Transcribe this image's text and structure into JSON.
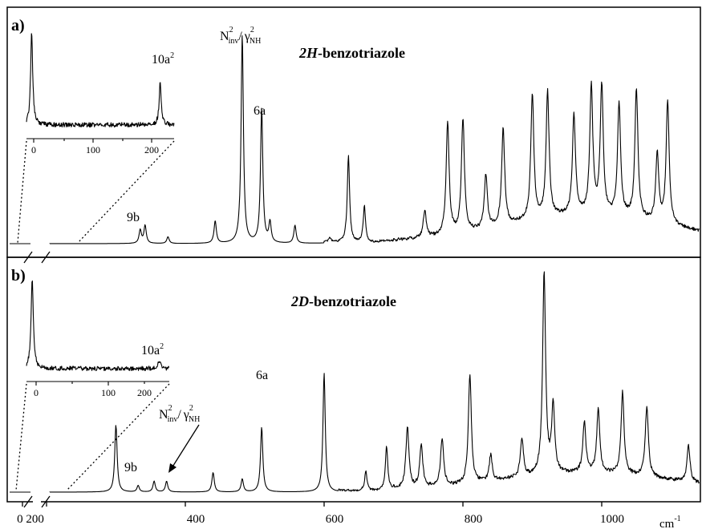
{
  "chart_data": [
    {
      "type": "line",
      "panel_label": "a)",
      "title": "2H-benzotriazole",
      "xunit": "cm-1",
      "xlim": [
        0,
        1150
      ],
      "x_axis_break_between": [
        30,
        200
      ],
      "annotations": [
        {
          "text": "9b",
          "x": 340
        },
        {
          "text": "6a",
          "x": 510
        },
        {
          "text": "Ninv2/γNH2",
          "x": 482
        }
      ],
      "peaks": [
        {
          "x": 335,
          "y": 0.06
        },
        {
          "x": 342,
          "y": 0.08
        },
        {
          "x": 375,
          "y": 0.03
        },
        {
          "x": 443,
          "y": 0.1
        },
        {
          "x": 482,
          "y": 0.93
        },
        {
          "x": 510,
          "y": 0.6
        },
        {
          "x": 522,
          "y": 0.09
        },
        {
          "x": 558,
          "y": 0.08
        },
        {
          "x": 608,
          "y": 0.02
        },
        {
          "x": 635,
          "y": 0.39
        },
        {
          "x": 658,
          "y": 0.16
        },
        {
          "x": 745,
          "y": 0.12
        },
        {
          "x": 778,
          "y": 0.5
        },
        {
          "x": 800,
          "y": 0.51
        },
        {
          "x": 833,
          "y": 0.24
        },
        {
          "x": 858,
          "y": 0.43
        },
        {
          "x": 900,
          "y": 0.56
        },
        {
          "x": 922,
          "y": 0.56
        },
        {
          "x": 960,
          "y": 0.45
        },
        {
          "x": 985,
          "y": 0.57
        },
        {
          "x": 1000,
          "y": 0.57
        },
        {
          "x": 1025,
          "y": 0.5
        },
        {
          "x": 1050,
          "y": 0.58
        },
        {
          "x": 1080,
          "y": 0.3
        },
        {
          "x": 1095,
          "y": 0.55
        }
      ],
      "inset": {
        "x_ticks": [
          0,
          100,
          200
        ],
        "xlim": [
          -10,
          275
        ],
        "annotation": {
          "text": "10a2",
          "x": 248
        },
        "peaks": [
          {
            "x": 0,
            "y": 1.0
          },
          {
            "x": 248,
            "y": 0.45
          }
        ]
      }
    },
    {
      "type": "line",
      "panel_label": "b)",
      "title": "2D-benzotriazole",
      "xunit": "cm-1",
      "xlim": [
        0,
        1150
      ],
      "x_ticks": [
        0,
        200,
        400,
        600,
        800,
        1000
      ],
      "x_axis_break_between": [
        30,
        200
      ],
      "annotations": [
        {
          "text": "9b",
          "x": 325
        },
        {
          "text": "6a",
          "x": 510
        },
        {
          "text": "Ninv2/γNH2",
          "x": 358
        }
      ],
      "peaks": [
        {
          "x": 300,
          "y": 0.31
        },
        {
          "x": 332,
          "y": 0.03
        },
        {
          "x": 355,
          "y": 0.05
        },
        {
          "x": 373,
          "y": 0.05
        },
        {
          "x": 440,
          "y": 0.09
        },
        {
          "x": 482,
          "y": 0.06
        },
        {
          "x": 510,
          "y": 0.3
        },
        {
          "x": 600,
          "y": 0.55
        },
        {
          "x": 660,
          "y": 0.09
        },
        {
          "x": 690,
          "y": 0.2
        },
        {
          "x": 720,
          "y": 0.28
        },
        {
          "x": 740,
          "y": 0.2
        },
        {
          "x": 770,
          "y": 0.22
        },
        {
          "x": 810,
          "y": 0.5
        },
        {
          "x": 840,
          "y": 0.12
        },
        {
          "x": 885,
          "y": 0.18
        },
        {
          "x": 917,
          "y": 0.93
        },
        {
          "x": 930,
          "y": 0.31
        },
        {
          "x": 975,
          "y": 0.23
        },
        {
          "x": 995,
          "y": 0.29
        },
        {
          "x": 1030,
          "y": 0.38
        },
        {
          "x": 1065,
          "y": 0.33
        },
        {
          "x": 1125,
          "y": 0.17
        }
      ],
      "inset": {
        "x_ticks": [
          0,
          100,
          200
        ],
        "xlim": [
          -10,
          240
        ],
        "annotation": {
          "text": "10a2",
          "x": 222
        },
        "peaks": [
          {
            "x": 0,
            "y": 1.0
          },
          {
            "x": 222,
            "y": 0.1
          }
        ]
      }
    }
  ],
  "text": {
    "a_label": "a)",
    "b_label": "b)",
    "title_a_italic": "2H",
    "title_a_rest": "-benzotriazole",
    "title_b_italic": "2D",
    "title_b_rest": "-benzotriazole",
    "n_letter": "N",
    "n_sub": "inv",
    "n_sup": "2",
    "slash": "/",
    "gamma_letter": "γ",
    "gamma_sub": "NH",
    "gamma_sup": "2",
    "label_9b": "9b",
    "label_6a": "6a",
    "label_10a": "10a",
    "label_10a_sup": "2",
    "unit_base": "cm",
    "unit_sup": "-1",
    "tick_0_200": "0  200",
    "tick_400": "400",
    "tick_600": "600",
    "tick_800": "800",
    "tick_1000": "1000",
    "inset_tick_0": "0",
    "inset_tick_100": "100",
    "inset_tick_200": "200"
  }
}
